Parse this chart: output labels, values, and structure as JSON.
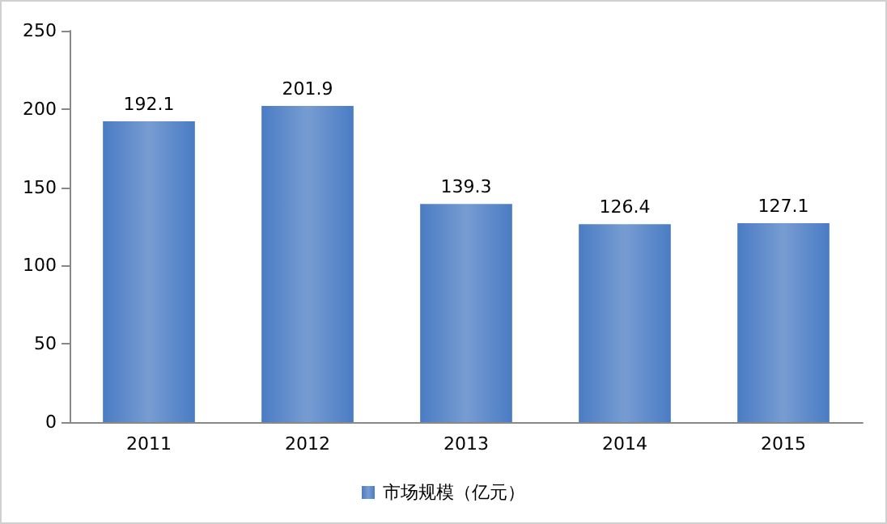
{
  "chart_data": {
    "type": "bar",
    "categories": [
      "2011",
      "2012",
      "2013",
      "2014",
      "2015"
    ],
    "series": [
      {
        "name": "市场规模（亿元）",
        "color": "#4a7cc4",
        "values": [
          192.1,
          201.9,
          139.3,
          126.4,
          127.1
        ]
      }
    ],
    "ylim": [
      0,
      250
    ],
    "yticks": [
      0,
      50,
      100,
      150,
      200,
      250
    ],
    "data_labels": true,
    "grid": false,
    "legend": "bottom"
  }
}
